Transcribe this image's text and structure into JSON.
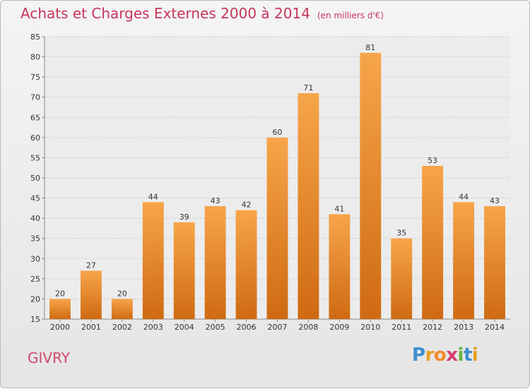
{
  "chart_data": {
    "type": "bar",
    "title": "Achats et Charges Externes 2000 à 2014",
    "subtitle": "(en milliers d'€)",
    "categories": [
      "2000",
      "2001",
      "2002",
      "2003",
      "2004",
      "2005",
      "2006",
      "2007",
      "2008",
      "2009",
      "2010",
      "2011",
      "2012",
      "2013",
      "2014"
    ],
    "values": [
      20,
      27,
      20,
      44,
      39,
      43,
      42,
      60,
      71,
      41,
      81,
      35,
      53,
      44,
      43
    ],
    "ylim": [
      15,
      85
    ],
    "yticks": [
      15,
      20,
      25,
      30,
      35,
      40,
      45,
      50,
      55,
      60,
      65,
      70,
      75,
      80,
      85
    ],
    "grid": true,
    "bar_color": "#f28a2a"
  },
  "place": "GIVRY",
  "logo": {
    "letters": [
      "P",
      "r",
      "o",
      "x",
      "i",
      "t",
      "i"
    ],
    "colors": [
      "#3a8fd0",
      "#e8a020",
      "#f28a2a",
      "#d63b6f",
      "#64b43c",
      "#3a8fd0",
      "#e8a020"
    ]
  }
}
